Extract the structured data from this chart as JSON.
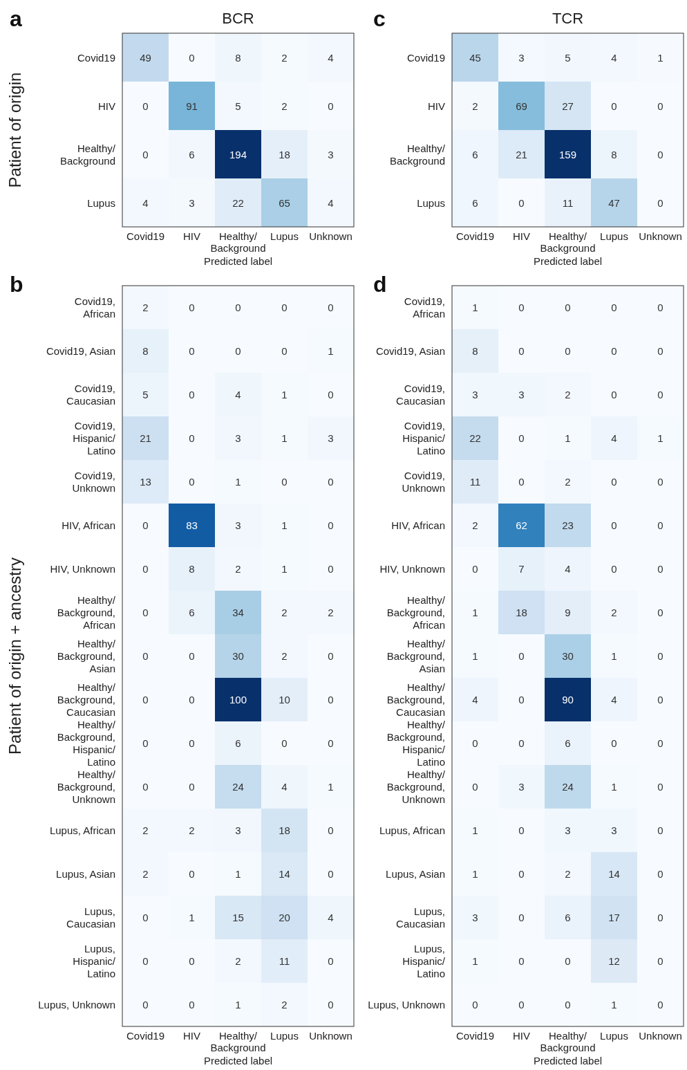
{
  "chart_data": [
    {
      "type": "heatmap",
      "data_labels": true,
      "title": "BCR",
      "ylabel": "Patient of origin",
      "xlabel": "Predicted label",
      "annotations": [
        "a"
      ],
      "categories": [
        "Covid19",
        "HIV",
        "Healthy/\nBackground",
        "Lupus",
        "Unknown"
      ],
      "y_categories": [
        "Covid19",
        "HIV",
        "Healthy/\nBackground",
        "Lupus"
      ],
      "cells": [
        [
          49,
          0,
          8,
          2,
          4
        ],
        [
          0,
          91,
          5,
          2,
          0
        ],
        [
          0,
          6,
          194,
          18,
          3
        ],
        [
          4,
          3,
          22,
          65,
          4
        ]
      ]
    },
    {
      "type": "heatmap",
      "data_labels": true,
      "title": "TCR",
      "xlabel": "Predicted label",
      "annotations": [
        "c"
      ],
      "categories": [
        "Covid19",
        "HIV",
        "Healthy/\nBackground",
        "Lupus",
        "Unknown"
      ],
      "y_categories": [
        "Covid19",
        "HIV",
        "Healthy/\nBackground",
        "Lupus"
      ],
      "cells": [
        [
          45,
          3,
          5,
          4,
          1
        ],
        [
          2,
          69,
          27,
          0,
          0
        ],
        [
          6,
          21,
          159,
          8,
          0
        ],
        [
          6,
          0,
          11,
          47,
          0
        ]
      ]
    },
    {
      "type": "heatmap",
      "data_labels": true,
      "ylabel": "Patient of origin + ancestry",
      "xlabel": "Predicted label",
      "annotations": [
        "b"
      ],
      "categories": [
        "Covid19",
        "HIV",
        "Healthy/\nBackground",
        "Lupus",
        "Unknown"
      ],
      "y_categories": [
        "Covid19,\nAfrican",
        "Covid19, Asian",
        "Covid19,\nCaucasian",
        "Covid19,\nHispanic/\nLatino",
        "Covid19,\nUnknown",
        "HIV, African",
        "HIV, Unknown",
        "Healthy/\nBackground,\nAfrican",
        "Healthy/\nBackground,\nAsian",
        "Healthy/\nBackground,\nCaucasian",
        "Healthy/\nBackground,\nHispanic/\nLatino",
        "Healthy/\nBackground,\nUnknown",
        "Lupus, African",
        "Lupus, Asian",
        "Lupus,\nCaucasian",
        "Lupus,\nHispanic/\nLatino",
        "Lupus, Unknown"
      ],
      "cells": [
        [
          2,
          0,
          0,
          0,
          0
        ],
        [
          8,
          0,
          0,
          0,
          1
        ],
        [
          5,
          0,
          4,
          1,
          0
        ],
        [
          21,
          0,
          3,
          1,
          3
        ],
        [
          13,
          0,
          1,
          0,
          0
        ],
        [
          0,
          83,
          3,
          1,
          0
        ],
        [
          0,
          8,
          2,
          1,
          0
        ],
        [
          0,
          6,
          34,
          2,
          2
        ],
        [
          0,
          0,
          30,
          2,
          0
        ],
        [
          0,
          0,
          100,
          10,
          0
        ],
        [
          0,
          0,
          6,
          0,
          0
        ],
        [
          0,
          0,
          24,
          4,
          1
        ],
        [
          2,
          2,
          3,
          18,
          0
        ],
        [
          2,
          0,
          1,
          14,
          0
        ],
        [
          0,
          1,
          15,
          20,
          4
        ],
        [
          0,
          0,
          2,
          11,
          0
        ],
        [
          0,
          0,
          1,
          2,
          0
        ]
      ]
    },
    {
      "type": "heatmap",
      "data_labels": true,
      "xlabel": "Predicted label",
      "annotations": [
        "d"
      ],
      "categories": [
        "Covid19",
        "HIV",
        "Healthy/\nBackground",
        "Lupus",
        "Unknown"
      ],
      "y_categories": [
        "Covid19,\nAfrican",
        "Covid19, Asian",
        "Covid19,\nCaucasian",
        "Covid19,\nHispanic/\nLatino",
        "Covid19,\nUnknown",
        "HIV, African",
        "HIV, Unknown",
        "Healthy/\nBackground,\nAfrican",
        "Healthy/\nBackground,\nAsian",
        "Healthy/\nBackground,\nCaucasian",
        "Healthy/\nBackground,\nHispanic/\nLatino",
        "Healthy/\nBackground,\nUnknown",
        "Lupus, African",
        "Lupus, Asian",
        "Lupus,\nCaucasian",
        "Lupus,\nHispanic/\nLatino",
        "Lupus, Unknown"
      ],
      "cells": [
        [
          1,
          0,
          0,
          0,
          0
        ],
        [
          8,
          0,
          0,
          0,
          0
        ],
        [
          3,
          3,
          2,
          0,
          0
        ],
        [
          22,
          0,
          1,
          4,
          1
        ],
        [
          11,
          0,
          2,
          0,
          0
        ],
        [
          2,
          62,
          23,
          0,
          0
        ],
        [
          0,
          7,
          4,
          0,
          0
        ],
        [
          1,
          18,
          9,
          2,
          0
        ],
        [
          1,
          0,
          30,
          1,
          0
        ],
        [
          4,
          0,
          90,
          4,
          0
        ],
        [
          0,
          0,
          6,
          0,
          0
        ],
        [
          0,
          3,
          24,
          1,
          0
        ],
        [
          1,
          0,
          3,
          3,
          0
        ],
        [
          1,
          0,
          2,
          14,
          0
        ],
        [
          3,
          0,
          6,
          17,
          0
        ],
        [
          1,
          0,
          0,
          12,
          0
        ],
        [
          0,
          0,
          0,
          1,
          0
        ]
      ]
    }
  ]
}
